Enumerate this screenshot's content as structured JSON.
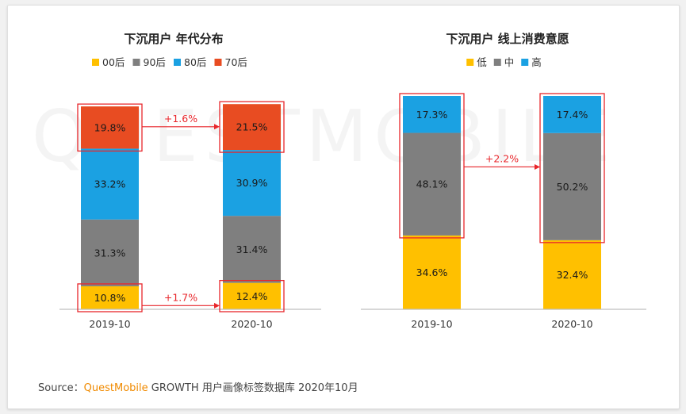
{
  "watermark_text": "QUESTMOBILE",
  "source": {
    "prefix": "Source：",
    "brand": "QuestMobile",
    "rest": " GROWTH 用户画像标签数据库 2020年10月"
  },
  "chart_data": [
    {
      "type": "bar",
      "stacked": true,
      "title": "下沉用户 年代分布",
      "categories": [
        "2019-10",
        "2020-10"
      ],
      "series": [
        {
          "name": "00后",
          "color": "#ffc000",
          "values": [
            10.8,
            12.4
          ],
          "labels": [
            "10.8%",
            "12.4%"
          ]
        },
        {
          "name": "90后",
          "color": "#7f7f7f",
          "values": [
            31.3,
            31.4
          ],
          "labels": [
            "31.3%",
            "31.4%"
          ]
        },
        {
          "name": "80后",
          "color": "#1ba1e2",
          "values": [
            33.2,
            30.9
          ],
          "labels": [
            "33.2%",
            "30.9%"
          ]
        },
        {
          "name": "70后",
          "color": "#e84c22",
          "values": [
            19.8,
            21.5
          ],
          "labels": [
            "19.8%",
            "21.5%"
          ]
        }
      ],
      "annotations": [
        {
          "text": "+1.6%",
          "series": "70后"
        },
        {
          "text": "+1.7%",
          "series": "00后"
        }
      ],
      "ylim": [
        0,
        100
      ],
      "legend": "top",
      "grid": false
    },
    {
      "type": "bar",
      "stacked": true,
      "title": "下沉用户 线上消费意愿",
      "categories": [
        "2019-10",
        "2020-10"
      ],
      "series": [
        {
          "name": "低",
          "color": "#ffc000",
          "values": [
            34.6,
            32.4
          ],
          "labels": [
            "34.6%",
            "32.4%"
          ]
        },
        {
          "name": "中",
          "color": "#7f7f7f",
          "values": [
            48.1,
            50.2
          ],
          "labels": [
            "48.1%",
            "50.2%"
          ]
        },
        {
          "name": "高",
          "color": "#1ba1e2",
          "values": [
            17.3,
            17.4
          ],
          "labels": [
            "17.3%",
            "17.4%"
          ]
        }
      ],
      "annotations": [
        {
          "text": "+2.2%",
          "series": "中"
        }
      ],
      "ylim": [
        0,
        100
      ],
      "legend": "top",
      "grid": false
    }
  ]
}
